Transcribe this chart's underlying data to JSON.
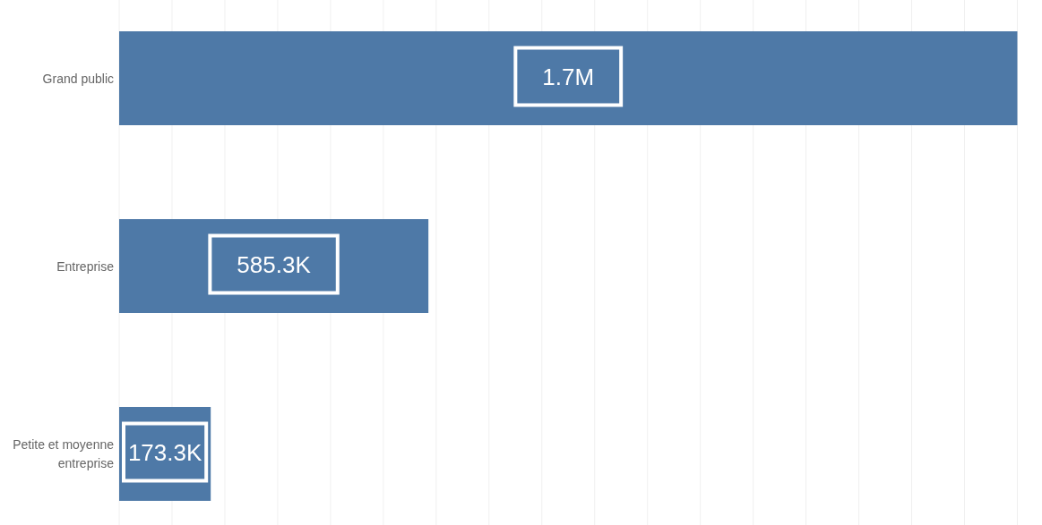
{
  "chart_data": {
    "type": "bar",
    "orientation": "horizontal",
    "categories": [
      "Grand public",
      "Entreprise",
      "Petite et moyenne entreprise"
    ],
    "values": [
      1700000,
      585300,
      173300
    ],
    "value_labels": [
      "1.7M",
      "585.3K",
      "173.3K"
    ],
    "color": "#4e79a7",
    "xlim": [
      0,
      1700000
    ],
    "xticks": [
      {
        "value": 0,
        "label": null
      },
      {
        "value": 100000,
        "label": null
      },
      {
        "value": 200000,
        "label": null
      },
      {
        "value": 300000,
        "label": null
      },
      {
        "value": 400000,
        "label": null
      },
      {
        "value": 500000,
        "label": null
      },
      {
        "value": 600000,
        "label": null
      },
      {
        "value": 700000,
        "label": null
      },
      {
        "value": 800000,
        "label": null
      },
      {
        "value": 900000,
        "label": null
      },
      {
        "value": 1000000,
        "label": null
      },
      {
        "value": 1100000,
        "label": null
      },
      {
        "value": 1200000,
        "label": null
      },
      {
        "value": 1300000,
        "label": null
      },
      {
        "value": 1400000,
        "label": null
      },
      {
        "value": 1500000,
        "label": null
      },
      {
        "value": 1600000,
        "label": null
      },
      {
        "value": 1700000,
        "label": null
      }
    ],
    "grid": "x",
    "tick_labels": "y"
  }
}
